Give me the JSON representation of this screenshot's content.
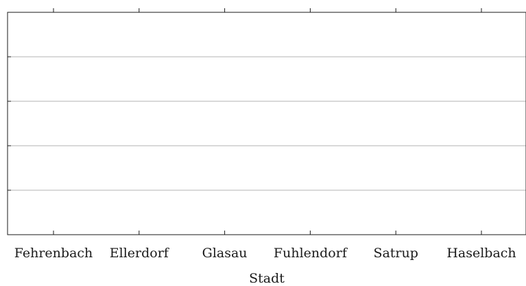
{
  "chart_data": {
    "type": "bar",
    "title": "",
    "xlabel": "Stadt",
    "ylabel": "",
    "categories": [
      "Fehrenbach",
      "Ellerdorf",
      "Glasau",
      "Fuhlendorf",
      "Satrup",
      "Haselbach"
    ],
    "series": [],
    "y_gridlines": 4,
    "grid": true,
    "legend": "none"
  },
  "colors": {
    "axis": "#1a1a1a",
    "grid": "#b3b3b3",
    "background": "#ffffff"
  }
}
